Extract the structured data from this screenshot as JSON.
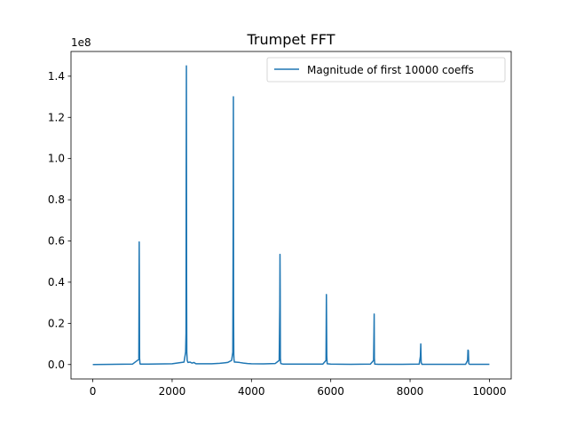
{
  "chart_data": {
    "type": "line",
    "title": "Trumpet FFT",
    "xlabel": "",
    "ylabel": "",
    "y_offset_label": "1e8",
    "xlim": [
      -550,
      10550
    ],
    "ylim": [
      -0.07,
      1.52
    ],
    "x_ticks": [
      0,
      2000,
      4000,
      6000,
      8000,
      10000
    ],
    "x_tick_labels": [
      "0",
      "2000",
      "4000",
      "6000",
      "8000",
      "10000"
    ],
    "y_ticks": [
      0.0,
      0.2,
      0.4,
      0.6,
      0.8,
      1.0,
      1.2,
      1.4
    ],
    "y_tick_labels": [
      "0.0",
      "0.2",
      "0.4",
      "0.6",
      "0.8",
      "1.0",
      "1.2",
      "1.4"
    ],
    "grid": false,
    "legend": {
      "position": "top-right"
    },
    "colors": {
      "series": "#1f77b4"
    },
    "series": [
      {
        "name": "Magnitude of first 10000 coeffs",
        "x": [
          0,
          1000,
          1160,
          1170,
          1180,
          1190,
          1200,
          1400,
          2000,
          2300,
          2340,
          2350,
          2355,
          2360,
          2365,
          2370,
          2380,
          2400,
          2450,
          2500,
          2550,
          2600,
          3000,
          3200,
          3400,
          3500,
          3530,
          3540,
          3545,
          3550,
          3555,
          3560,
          3570,
          3600,
          3700,
          3800,
          3900,
          4000,
          4300,
          4600,
          4700,
          4715,
          4720,
          4725,
          4730,
          4740,
          4800,
          5200,
          5800,
          5880,
          5890,
          5900,
          5910,
          6000,
          6500,
          7000,
          7080,
          7090,
          7095,
          7100,
          7110,
          7200,
          7800,
          8230,
          8260,
          8270,
          8280,
          8300,
          8800,
          9400,
          9450,
          9460,
          9470,
          9480,
          9500,
          10000
        ],
        "y": [
          0.0,
          0.002,
          0.025,
          0.595,
          0.03,
          0.004,
          0.002,
          0.002,
          0.004,
          0.012,
          0.06,
          0.15,
          0.97,
          1.45,
          0.4,
          0.06,
          0.02,
          0.01,
          0.012,
          0.007,
          0.01,
          0.004,
          0.004,
          0.006,
          0.01,
          0.02,
          0.06,
          0.74,
          1.3,
          0.25,
          0.05,
          0.025,
          0.012,
          0.012,
          0.01,
          0.007,
          0.005,
          0.004,
          0.003,
          0.005,
          0.02,
          0.29,
          0.535,
          0.36,
          0.03,
          0.005,
          0.002,
          0.002,
          0.002,
          0.02,
          0.34,
          0.04,
          0.004,
          0.002,
          0.001,
          0.002,
          0.02,
          0.16,
          0.245,
          0.03,
          0.002,
          0.001,
          0.001,
          0.002,
          0.04,
          0.1,
          0.01,
          0.001,
          0.001,
          0.001,
          0.02,
          0.07,
          0.068,
          0.005,
          0.001,
          0.001
        ]
      }
    ]
  }
}
